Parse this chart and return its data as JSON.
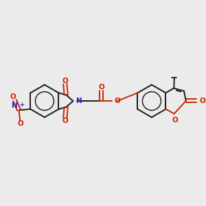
{
  "background_color": "#ebebeb",
  "bond_color": "#1a1a1a",
  "nitrogen_color": "#2222cc",
  "oxygen_color": "#cc2200",
  "fig_width": 3.0,
  "fig_height": 3.0,
  "dpi": 100,
  "xlim": [
    0,
    10
  ],
  "ylim": [
    0,
    10
  ]
}
